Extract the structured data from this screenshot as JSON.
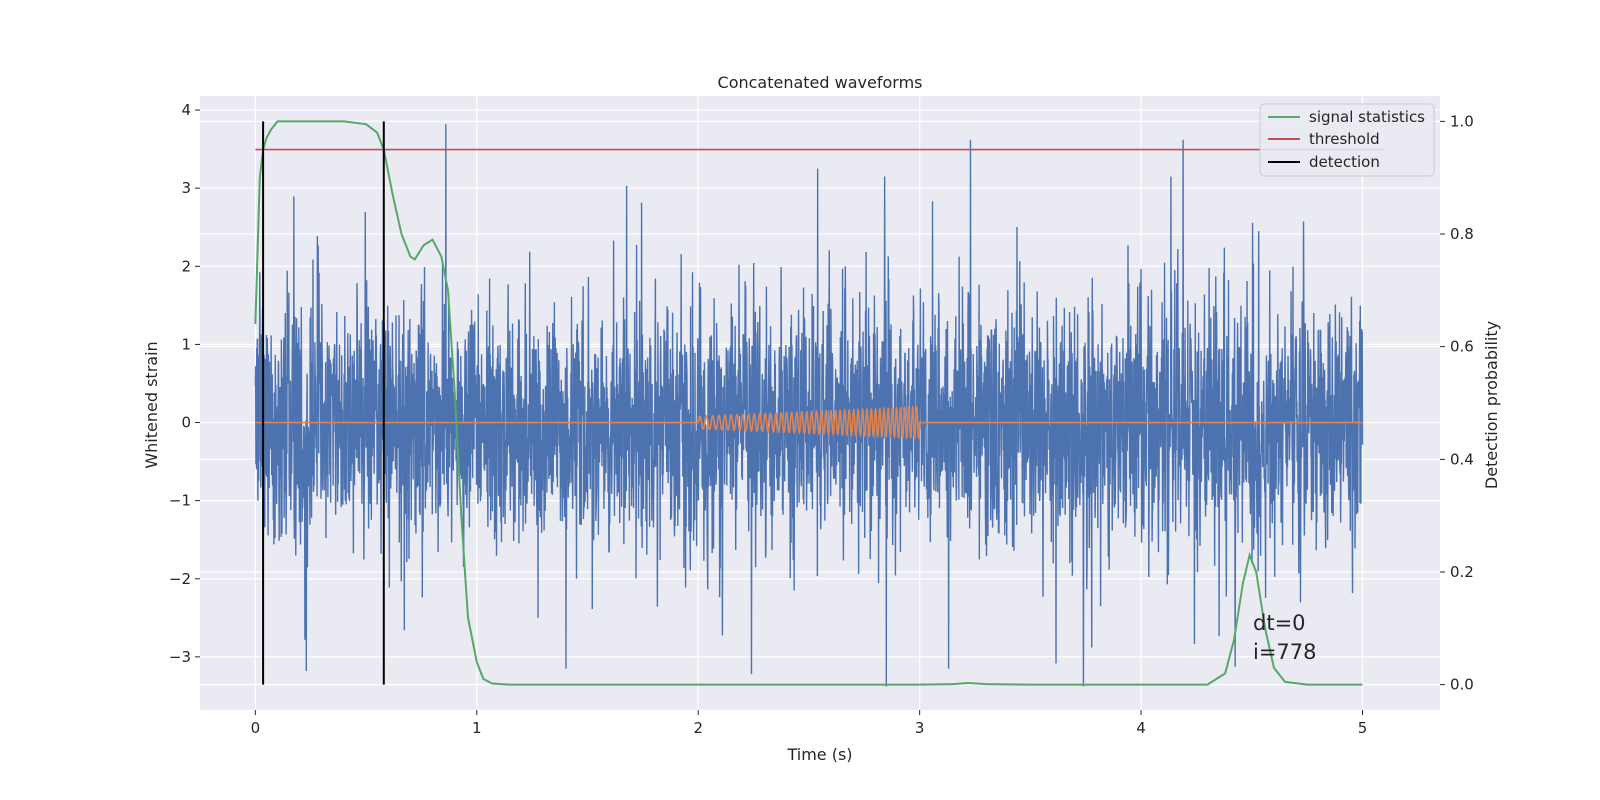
{
  "chart_data": {
    "type": "line",
    "title": "Concatenated waveforms",
    "xlabel": "Time (s)",
    "ylabel": "Whitened strain",
    "y2label": "Detection probability",
    "xlim": [
      -0.25,
      5.35
    ],
    "ylim": [
      -3.68,
      4.18
    ],
    "y2lim": [
      -0.045,
      1.045
    ],
    "x_ticks": [
      0,
      1,
      2,
      3,
      4,
      5
    ],
    "y_ticks": [
      -3,
      -2,
      -1,
      0,
      1,
      2,
      3,
      4
    ],
    "y2_ticks": [
      0.0,
      0.2,
      0.4,
      0.6,
      0.8,
      1.0
    ],
    "x_tick_labels": [
      "0",
      "1",
      "2",
      "3",
      "4",
      "5"
    ],
    "y_tick_labels": [
      "−3",
      "−2",
      "−1",
      "0",
      "1",
      "2",
      "3",
      "4"
    ],
    "y2_tick_labels": [
      "0.0",
      "0.2",
      "0.4",
      "0.6",
      "0.8",
      "1.0"
    ],
    "grid": true,
    "legend_position": "top-right",
    "legend": [
      "signal statistics",
      "threshold",
      "detection"
    ],
    "colors": {
      "noise": "#4c72b0",
      "waveform": "#dd8452",
      "signal_statistics": "#55a868",
      "threshold": "#c44e52",
      "detection": "#000000",
      "background": "#eaeaf2",
      "grid": "#ffffff"
    },
    "series": [
      {
        "role": "whitened-strain-noise",
        "x_range": [
          0,
          5
        ],
        "typical_amplitude": 0.95,
        "notable_peaks": [
          {
            "x": 0.86,
            "y": 3.82
          },
          {
            "x": 3.23,
            "y": 3.62
          },
          {
            "x": 4.19,
            "y": 3.62
          },
          {
            "x": 2.54,
            "y": 3.25
          },
          {
            "x": 2.85,
            "y": -3.38
          },
          {
            "x": 3.74,
            "y": -3.38
          },
          {
            "x": 0.23,
            "y": -3.18
          },
          {
            "x": 2.24,
            "y": -3.22
          }
        ]
      },
      {
        "role": "injected-waveform",
        "x_range": [
          0,
          5
        ],
        "chirp_start": 2.0,
        "chirp_end": 3.0,
        "chirp_amplitude_start": 0.08,
        "chirp_amplitude_end": 0.2,
        "cycles": 45
      },
      {
        "name": "signal statistics",
        "axis": "right",
        "x": [
          0,
          0.02,
          0.035,
          0.05,
          0.07,
          0.1,
          0.2,
          0.3,
          0.4,
          0.5,
          0.55,
          0.58,
          0.62,
          0.66,
          0.7,
          0.72,
          0.76,
          0.8,
          0.84,
          0.87,
          0.9,
          0.93,
          0.96,
          1.0,
          1.03,
          1.07,
          1.15,
          1.3,
          2.0,
          3.0,
          3.15,
          3.22,
          3.3,
          3.5,
          4.0,
          4.3,
          4.38,
          4.42,
          4.46,
          4.49,
          4.52,
          4.56,
          4.6,
          4.65,
          4.75,
          5.0
        ],
        "y": [
          0.64,
          0.9,
          0.95,
          0.97,
          0.985,
          1.0,
          1.0,
          1.0,
          1.0,
          0.995,
          0.98,
          0.95,
          0.87,
          0.8,
          0.76,
          0.755,
          0.78,
          0.79,
          0.76,
          0.7,
          0.52,
          0.3,
          0.12,
          0.04,
          0.01,
          0.002,
          0.0,
          0.0,
          0.0,
          0.0,
          0.001,
          0.003,
          0.001,
          0.0,
          0.0,
          0.0,
          0.02,
          0.08,
          0.18,
          0.23,
          0.2,
          0.1,
          0.03,
          0.005,
          0.0,
          0.0
        ]
      },
      {
        "name": "threshold",
        "axis": "right",
        "x": [
          0,
          5.1
        ],
        "y": [
          0.95,
          0.95
        ]
      },
      {
        "name": "detection",
        "axis": "right",
        "vlines": [
          0.035,
          0.58
        ],
        "y_range": [
          0.0,
          1.0
        ]
      }
    ],
    "annotations": [
      "dt=0",
      "i=778"
    ]
  }
}
